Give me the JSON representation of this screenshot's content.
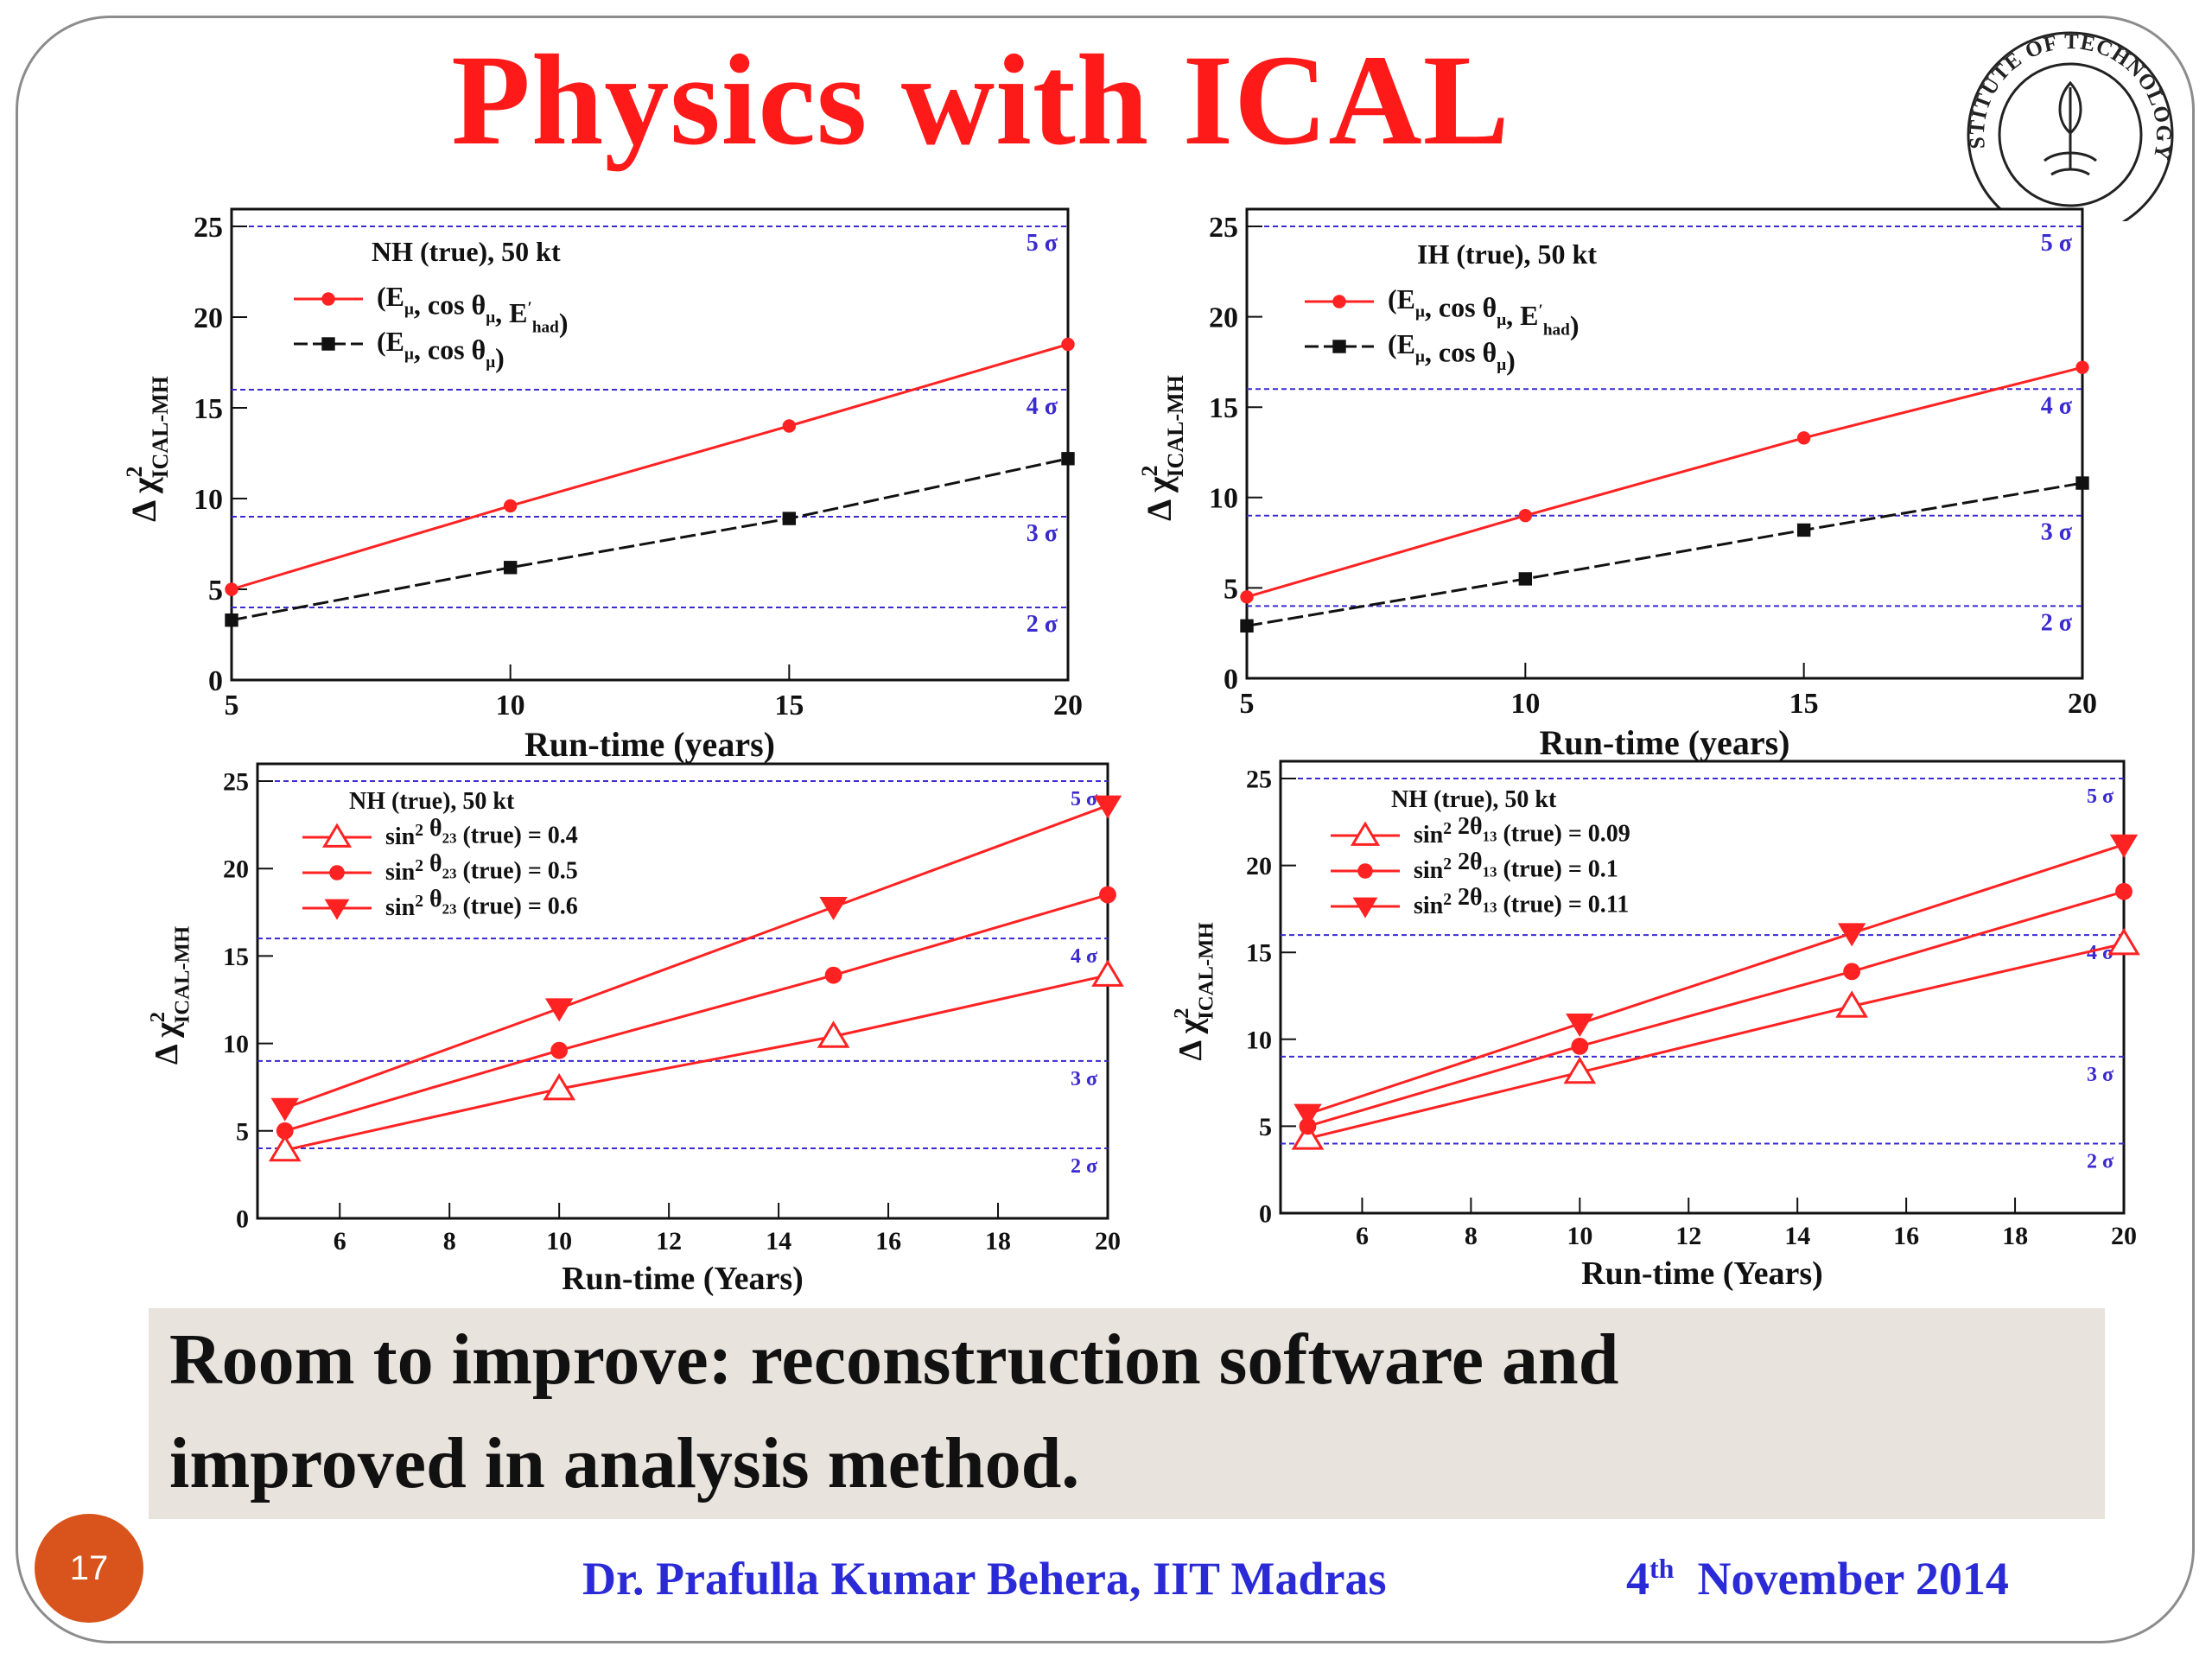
{
  "slide": {
    "title": "Physics with ICAL",
    "note_line1": "Room to improve: reconstruction software and",
    "note_line2": "improved  in analysis method.",
    "page_number": "17",
    "author": "Dr. Prafulla Kumar Behera, IIT Madras",
    "date_day": "4",
    "date_suffix": "th",
    "date_rest": "November 2014",
    "logo_text": "INDIAN INSTITUTE OF TECHNOLOGY MADRAS",
    "colors": {
      "title": "#ff1a1a",
      "footer": "#2a2ad6",
      "badge": "#d9541c",
      "red": "#ff2222",
      "black": "#111111",
      "sigma": "#3a2ad0"
    }
  },
  "chart_data": [
    {
      "type": "line",
      "xlabel": "Run-time (years)",
      "ylabel": "Δ χ²ICAL-MH",
      "xlim": [
        5,
        20
      ],
      "ylim": [
        0,
        25
      ],
      "xticks": [
        5,
        10,
        15,
        20
      ],
      "yticks": [
        0,
        5,
        10,
        15,
        20,
        25
      ],
      "legend_header": "NH (true), 50 kt",
      "series": [
        {
          "name": "(Eμ, cos θμ, E'had)",
          "color": "#ff2222",
          "marker": "circle",
          "dash": false,
          "x": [
            5,
            10,
            15,
            20
          ],
          "y": [
            5.0,
            9.6,
            14.0,
            18.5
          ]
        },
        {
          "name": "(Eμ, cos θμ)",
          "color": "#111111",
          "marker": "square",
          "dash": true,
          "x": [
            5,
            10,
            15,
            20
          ],
          "y": [
            3.3,
            6.2,
            8.9,
            12.2
          ]
        }
      ],
      "sigma_lines": [
        {
          "y": 4,
          "label": "2 σ"
        },
        {
          "y": 9,
          "label": "3 σ"
        },
        {
          "y": 16,
          "label": "4 σ"
        },
        {
          "y": 25,
          "label": "5 σ"
        }
      ]
    },
    {
      "type": "line",
      "xlabel": "Run-time (years)",
      "ylabel": "Δ χ²ICAL-MH",
      "xlim": [
        5,
        20
      ],
      "ylim": [
        0,
        25
      ],
      "xticks": [
        5,
        10,
        15,
        20
      ],
      "yticks": [
        0,
        5,
        10,
        15,
        20,
        25
      ],
      "legend_header": "IH (true), 50 kt",
      "series": [
        {
          "name": "(Eμ, cos θμ, E'had)",
          "color": "#ff2222",
          "marker": "circle",
          "dash": false,
          "x": [
            5,
            10,
            15,
            20
          ],
          "y": [
            4.5,
            9.0,
            13.3,
            17.2
          ]
        },
        {
          "name": "(Eμ, cos θμ)",
          "color": "#111111",
          "marker": "square",
          "dash": true,
          "x": [
            5,
            10,
            15,
            20
          ],
          "y": [
            2.9,
            5.5,
            8.2,
            10.8
          ]
        }
      ],
      "sigma_lines": [
        {
          "y": 4,
          "label": "2 σ"
        },
        {
          "y": 9,
          "label": "3 σ"
        },
        {
          "y": 16,
          "label": "4 σ"
        },
        {
          "y": 25,
          "label": "5 σ"
        }
      ]
    },
    {
      "type": "line",
      "xlabel": "Run-time (Years)",
      "ylabel": "Δ χ²ICAL-MH",
      "xlim": [
        4.5,
        20
      ],
      "ylim": [
        0,
        25
      ],
      "xticks": [
        6,
        8,
        10,
        12,
        14,
        16,
        18,
        20
      ],
      "yticks": [
        0,
        5,
        10,
        15,
        20,
        25
      ],
      "legend_header": "NH (true), 50 kt",
      "series": [
        {
          "name": "sin² θ23 (true) = 0.4",
          "color": "#ff2222",
          "marker": "triangle-up-open",
          "dash": false,
          "x": [
            5,
            10,
            15,
            20
          ],
          "y": [
            3.9,
            7.4,
            10.4,
            13.9
          ]
        },
        {
          "name": "sin² θ23 (true) = 0.5",
          "color": "#ff2222",
          "marker": "circle",
          "dash": false,
          "x": [
            5,
            10,
            15,
            20
          ],
          "y": [
            5.0,
            9.6,
            13.9,
            18.5
          ]
        },
        {
          "name": "sin² θ23 (true) = 0.6",
          "color": "#ff2222",
          "marker": "triangle-down",
          "dash": false,
          "x": [
            5,
            10,
            15,
            20
          ],
          "y": [
            6.3,
            12.0,
            17.8,
            23.6
          ]
        }
      ],
      "sigma_lines": [
        {
          "y": 4,
          "label": "2 σ"
        },
        {
          "y": 9,
          "label": "3 σ"
        },
        {
          "y": 16,
          "label": "4 σ"
        },
        {
          "y": 25,
          "label": "5 σ"
        }
      ]
    },
    {
      "type": "line",
      "xlabel": "Run-time (Years)",
      "ylabel": "Δ χ²ICAL-MH",
      "xlim": [
        4.5,
        20
      ],
      "ylim": [
        0,
        25
      ],
      "xticks": [
        6,
        8,
        10,
        12,
        14,
        16,
        18,
        20
      ],
      "yticks": [
        0,
        5,
        10,
        15,
        20,
        25
      ],
      "legend_header": "NH (true), 50 kt",
      "series": [
        {
          "name": "sin² 2θ13 (true) = 0.09",
          "color": "#ff2222",
          "marker": "triangle-up-open",
          "dash": false,
          "x": [
            5,
            10,
            15,
            20
          ],
          "y": [
            4.3,
            8.1,
            11.9,
            15.5
          ]
        },
        {
          "name": "sin² 2θ13 (true) = 0.1",
          "color": "#ff2222",
          "marker": "circle",
          "dash": false,
          "x": [
            5,
            10,
            15,
            20
          ],
          "y": [
            5.0,
            9.6,
            13.9,
            18.5
          ]
        },
        {
          "name": "sin² 2θ13 (true) = 0.11",
          "color": "#ff2222",
          "marker": "triangle-down",
          "dash": false,
          "x": [
            5,
            10,
            15,
            20
          ],
          "y": [
            5.7,
            10.9,
            16.1,
            21.2
          ]
        }
      ],
      "sigma_lines": [
        {
          "y": 4,
          "label": "2 σ"
        },
        {
          "y": 9,
          "label": "3 σ"
        },
        {
          "y": 16,
          "label": "4 σ"
        },
        {
          "y": 25,
          "label": "5 σ"
        }
      ]
    }
  ]
}
